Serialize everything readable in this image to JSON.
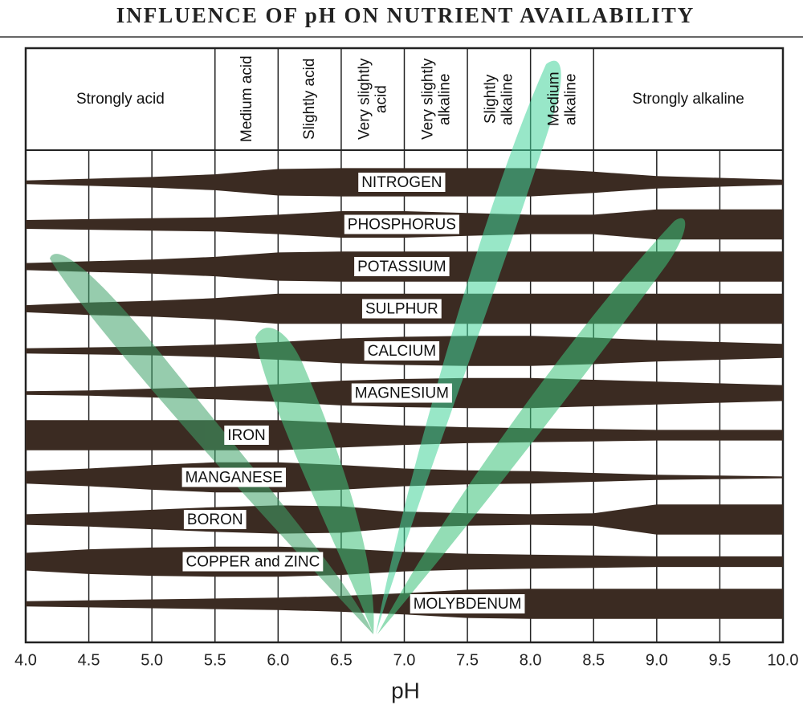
{
  "chart_data": {
    "type": "availability-bands",
    "title": "INFLUENCE OF pH ON NUTRIENT AVAILABILITY",
    "xlabel": "pH",
    "xlim": [
      4.0,
      10.0
    ],
    "xticks": [
      {
        "value": 4,
        "label": "4.0"
      },
      4.5,
      {
        "value": 5,
        "label": "5.0"
      },
      5.5,
      {
        "value": 6,
        "label": "6.0"
      },
      6.5,
      {
        "value": 7,
        "label": "7.0"
      },
      7.5,
      {
        "value": 8,
        "label": "8.0"
      },
      8.5,
      {
        "value": 9,
        "label": "9.0"
      },
      9.5,
      {
        "value": 10,
        "label": "10.0"
      }
    ],
    "zones": [
      {
        "label": "Strongly acid",
        "from": 4.0,
        "to": 5.5
      },
      {
        "label": "Medium acid",
        "from": 5.5,
        "to": 6.0
      },
      {
        "label": "Slightly acid",
        "from": 6.0,
        "to": 6.5
      },
      {
        "label": "Very slightly acid",
        "from": 6.5,
        "to": 7.0
      },
      {
        "label": "Very slightly alkaline",
        "from": 7.0,
        "to": 7.5
      },
      {
        "label": "Slightly alkaline",
        "from": 7.5,
        "to": 8.0
      },
      {
        "label": "Medium alkaline",
        "from": 8.0,
        "to": 8.5
      },
      {
        "label": "Strongly alkaline",
        "from": 8.5,
        "to": 10.0
      }
    ],
    "x": [
      4.0,
      4.5,
      5.0,
      5.5,
      6.0,
      6.5,
      7.0,
      7.5,
      8.0,
      8.5,
      9.0,
      9.5,
      10.0
    ],
    "color": "#3b2b22",
    "series": [
      {
        "name": "NITROGEN",
        "values": [
          4,
          8,
          12,
          18,
          30,
          32,
          32,
          32,
          32,
          24,
          14,
          10,
          6
        ]
      },
      {
        "name": "PHOSPHORUS",
        "values": [
          10,
          12,
          14,
          16,
          22,
          30,
          30,
          26,
          22,
          22,
          34,
          34,
          34
        ]
      },
      {
        "name": "POTASSIUM",
        "values": [
          8,
          12,
          16,
          22,
          32,
          34,
          34,
          34,
          34,
          34,
          34,
          34,
          34
        ]
      },
      {
        "name": "SULPHUR",
        "values": [
          8,
          14,
          18,
          24,
          34,
          34,
          34,
          34,
          34,
          34,
          34,
          34,
          34
        ]
      },
      {
        "name": "CALCIUM",
        "values": [
          6,
          8,
          10,
          14,
          20,
          28,
          32,
          34,
          34,
          30,
          24,
          20,
          16
        ]
      },
      {
        "name": "MAGNESIUM",
        "values": [
          4,
          6,
          10,
          14,
          20,
          28,
          32,
          34,
          34,
          30,
          26,
          22,
          18
        ]
      },
      {
        "name": "IRON",
        "values": [
          34,
          34,
          34,
          34,
          34,
          28,
          22,
          18,
          16,
          14,
          12,
          12,
          12
        ]
      },
      {
        "name": "MANGANESE",
        "values": [
          14,
          20,
          28,
          34,
          34,
          28,
          20,
          16,
          14,
          10,
          6,
          4,
          2
        ]
      },
      {
        "name": "BORON",
        "values": [
          12,
          16,
          22,
          28,
          32,
          30,
          18,
          14,
          12,
          14,
          34,
          34,
          34
        ]
      },
      {
        "name": "COPPER and ZINC",
        "values": [
          20,
          28,
          32,
          34,
          34,
          30,
          22,
          18,
          16,
          14,
          12,
          12,
          12
        ]
      },
      {
        "name": "MOLYBDENUM",
        "values": [
          6,
          8,
          10,
          12,
          14,
          18,
          24,
          32,
          34,
          34,
          34,
          34,
          34
        ]
      }
    ]
  }
}
